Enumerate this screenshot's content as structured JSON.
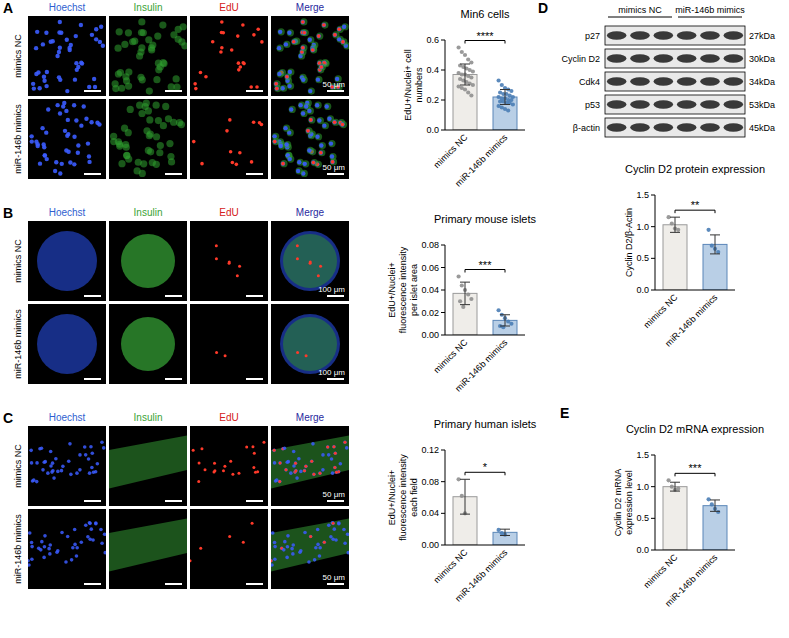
{
  "panels": [
    "A",
    "B",
    "C",
    "D",
    "E"
  ],
  "image_panels": [
    {
      "channels": [
        "Hoechst",
        "Insulin",
        "EdU",
        "Merge"
      ],
      "rows": [
        "mimics NC",
        "miR-146b mimics"
      ],
      "scale_bar": "50 μm"
    },
    {
      "channels": [
        "Hoechst",
        "Insulin",
        "EdU",
        "Merge"
      ],
      "rows": [
        "mimics NC",
        "miR-146b mimics"
      ],
      "scale_bar": "100 μm"
    },
    {
      "channels": [
        "Hoechst",
        "Insulin",
        "EdU",
        "Merge"
      ],
      "rows": [
        "mimics NC",
        "miR-146b mimics"
      ],
      "scale_bar": "50 μm"
    }
  ],
  "blot": {
    "groups": [
      "mimics NC",
      "miR-146b mimics"
    ],
    "lanes_per_group": 3,
    "rows": [
      {
        "name": "p27",
        "size": "27kDa"
      },
      {
        "name": "Cyclin D2",
        "size": "30kDa"
      },
      {
        "name": "Cdk4",
        "size": "34kDa"
      },
      {
        "name": "p53",
        "size": "53kDa"
      },
      {
        "name": "β-actin",
        "size": "45kDa"
      }
    ]
  },
  "chart_data": [
    {
      "type": "bar",
      "title": "Min6 cells",
      "y_label": "EdU+/Nuclei+ cell numbers",
      "categories": [
        "mimics NC",
        "miR-146b mimics"
      ],
      "values": [
        0.37,
        0.22
      ],
      "errors": [
        0.07,
        0.05
      ],
      "points": [
        [
          0.55,
          0.52,
          0.5,
          0.47,
          0.45,
          0.43,
          0.42,
          0.41,
          0.4,
          0.39,
          0.38,
          0.37,
          0.37,
          0.36,
          0.35,
          0.34,
          0.33,
          0.32,
          0.31,
          0.3,
          0.29,
          0.28,
          0.27,
          0.25,
          0.23
        ],
        [
          0.33,
          0.3,
          0.28,
          0.27,
          0.26,
          0.25,
          0.24,
          0.24,
          0.23,
          0.22,
          0.22,
          0.21,
          0.21,
          0.2,
          0.2,
          0.19,
          0.19,
          0.18,
          0.18,
          0.17,
          0.16,
          0.15,
          0.14,
          0.13
        ]
      ],
      "significance": "****",
      "colors": [
        "#efede9",
        "#b9cfe6"
      ],
      "ylim": [
        0,
        0.6
      ],
      "yticks": [
        {
          "value": 0,
          "label": "0.0"
        },
        0.2,
        0.4,
        0.6
      ]
    },
    {
      "type": "bar",
      "title": "Primary mouse islets",
      "y_label": "EdU+/Nuclei+ fluorescence intensity per islet area",
      "categories": [
        "mimics NC",
        "miR-146b mimics"
      ],
      "values": [
        0.037,
        0.013
      ],
      "errors": [
        0.01,
        0.005
      ],
      "points": [
        [
          0.052,
          0.044,
          0.04,
          0.036,
          0.032,
          0.03,
          0.025
        ],
        [
          0.022,
          0.018,
          0.015,
          0.012,
          0.01,
          0.008,
          0.007
        ]
      ],
      "significance": "***",
      "colors": [
        "#efede9",
        "#b9cfe6"
      ],
      "ylim": [
        0,
        0.08
      ],
      "yticks": [
        {
          "value": 0,
          "label": "0.00"
        },
        0.02,
        0.04,
        0.06,
        0.08
      ]
    },
    {
      "type": "bar",
      "title": "Primary human islets",
      "y_label": "EdU+/Nuclei+ fluorescence intensity each field",
      "categories": [
        "mimics NC",
        "miR-146b mimics"
      ],
      "values": [
        0.061,
        0.016
      ],
      "errors": [
        0.022,
        0.004
      ],
      "points": [
        [
          0.083,
          0.062,
          0.04
        ],
        [
          0.019,
          0.015,
          0.013
        ]
      ],
      "significance": "*",
      "colors": [
        "#efede9",
        "#b9cfe6"
      ],
      "ylim": [
        0,
        0.12
      ],
      "yticks": [
        {
          "value": 0,
          "label": "0.00"
        },
        0.04,
        0.08,
        0.12
      ]
    },
    {
      "type": "bar",
      "title": "Cyclin D2 protein expression",
      "y_label": "Cyclin D2/β-Actin",
      "categories": [
        "mimics NC",
        "miR-146b mimics"
      ],
      "values": [
        1.03,
        0.72
      ],
      "errors": [
        0.12,
        0.15
      ],
      "points": [
        [
          1.15,
          1.05,
          0.97,
          0.95
        ],
        [
          0.95,
          0.7,
          0.65,
          0.6
        ]
      ],
      "significance": "**",
      "colors": [
        "#efede9",
        "#b9cfe6"
      ],
      "ylim": [
        0,
        1.5
      ],
      "yticks": [
        {
          "value": 0,
          "label": "0.0"
        },
        0.5,
        {
          "value": 1,
          "label": "1.0"
        },
        1.5
      ]
    },
    {
      "type": "bar",
      "title": "Cyclin D2 mRNA expression",
      "y_label": "Cyclin D2 mRNA expression level",
      "categories": [
        "mimics NC",
        "miR-146b mimics"
      ],
      "values": [
        1.0,
        0.7
      ],
      "errors": [
        0.07,
        0.09
      ],
      "points": [
        [
          1.1,
          1.0,
          0.95,
          0.97
        ],
        [
          0.8,
          0.72,
          0.65,
          0.6
        ]
      ],
      "significance": "***",
      "colors": [
        "#efede9",
        "#b9cfe6"
      ],
      "ylim": [
        0,
        1.5
      ],
      "yticks": [
        {
          "value": 0,
          "label": "0.0"
        },
        0.5,
        {
          "value": 1,
          "label": "1.0"
        },
        1.5
      ]
    }
  ]
}
